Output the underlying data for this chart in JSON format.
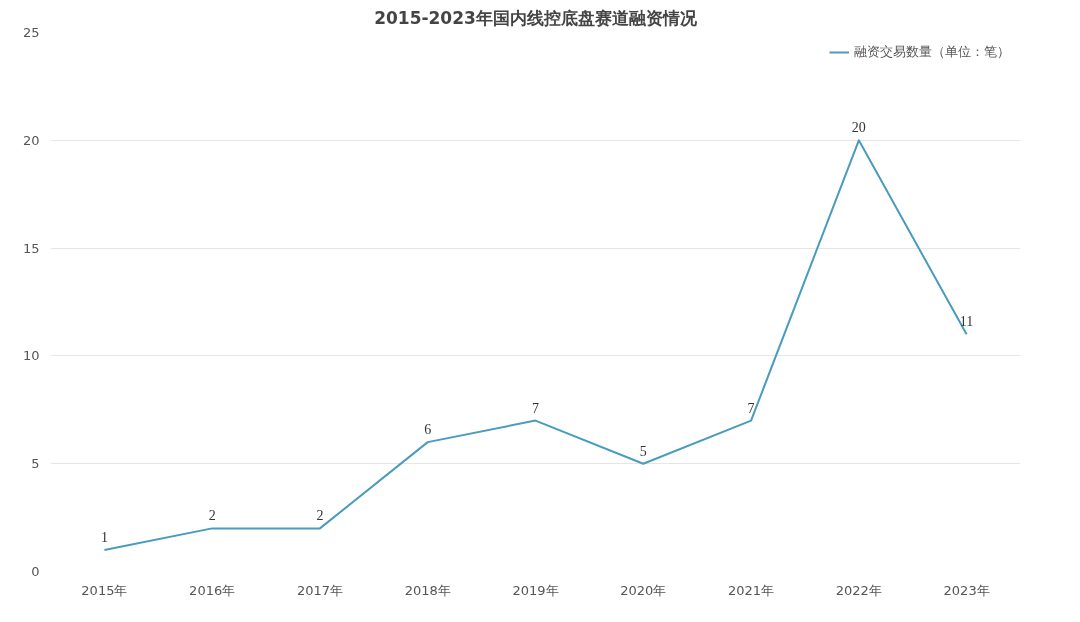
{
  "chart_data": {
    "type": "line",
    "title": "2015-2023年国内线控底盘赛道融资情况",
    "categories": [
      "2015年",
      "2016年",
      "2017年",
      "2018年",
      "2019年",
      "2020年",
      "2021年",
      "2022年",
      "2023年"
    ],
    "series": [
      {
        "name": "融资交易数量（单位：笔）",
        "color": "#4a9bbd",
        "values": [
          1,
          2,
          2,
          6,
          7,
          5,
          7,
          20,
          11
        ]
      }
    ],
    "ylim": [
      0,
      25
    ],
    "yticks": [
      0,
      5,
      10,
      15,
      20,
      25
    ],
    "grid": "y",
    "legend": "top right",
    "data_labels": true,
    "marker": "none",
    "line_style": "solid"
  }
}
